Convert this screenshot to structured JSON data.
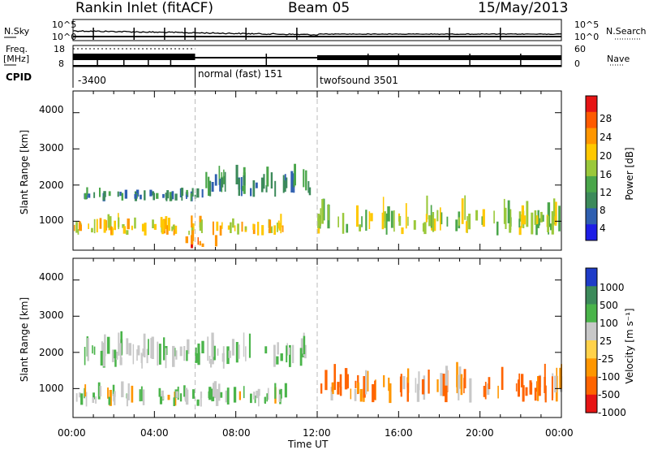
{
  "header": {
    "site": "Rankin Inlet (fitACF)",
    "beam": "Beam 05",
    "date": "15/May/2013"
  },
  "top_panels": {
    "nsky_label": "N.Sky",
    "nsky_ticks": [
      "10^5",
      "10^0"
    ],
    "nsearch_label": "N.Search",
    "nsearch_ticks": [
      "10^5",
      "10^0"
    ],
    "freq_label": "Freq.",
    "freq_unit": "[MHz]",
    "freq_ticks": [
      "18",
      "8"
    ],
    "nave_label": "Nave",
    "nave_ticks": [
      "60",
      "0"
    ],
    "cpid_label": "CPID",
    "cpid_segments": [
      {
        "start": 0,
        "end": 6,
        "label": "-3400"
      },
      {
        "start": 6,
        "end": 12,
        "label": "normal (fast) 151"
      },
      {
        "start": 12,
        "end": 24,
        "label": "twofsound 3501"
      }
    ]
  },
  "x_axis": {
    "title": "Time UT",
    "range": [
      0,
      24
    ],
    "ticks": [
      "00:00",
      "04:00",
      "08:00",
      "12:00",
      "16:00",
      "20:00",
      "00:00"
    ]
  },
  "y_axis": {
    "title": "Slant Range [km]",
    "range": [
      200,
      4600
    ],
    "ticks": [
      "1000",
      "2000",
      "3000",
      "4000"
    ]
  },
  "power_scale": {
    "title": "Power [dB]",
    "labels": [
      "4",
      "8",
      "12",
      "16",
      "20",
      "24",
      "28"
    ],
    "colors": [
      "#1e1ee6",
      "#2f5fb0",
      "#3c8a5a",
      "#4aa64a",
      "#9ac83a",
      "#ffc800",
      "#ff9600",
      "#ff5a00",
      "#e61414"
    ]
  },
  "velocity_scale": {
    "title": "Velocity [m s⁻¹]",
    "labels": [
      "1000",
      "500",
      "100",
      "25",
      "-25",
      "-100",
      "-500",
      "-1000"
    ],
    "colors": [
      "#1e3cc8",
      "#3c8a5a",
      "#4ab44a",
      "#c8c8c8",
      "#ffd24a",
      "#ff9600",
      "#ff6400",
      "#e61414"
    ]
  },
  "chart_data": [
    {
      "type": "heatmap",
      "title": "Power",
      "xlabel": "Time UT",
      "ylabel": "Slant Range [km]",
      "xlim": [
        0,
        24
      ],
      "ylim": [
        200,
        4600
      ],
      "colorbar": "Power [dB]",
      "echo_bands": [
        {
          "t_start": 0.5,
          "t_end": 6.2,
          "range_km": [
            1550,
            1900
          ],
          "value_db": 8
        },
        {
          "t_start": 0.0,
          "t_end": 10.5,
          "range_km": [
            600,
            1100
          ],
          "value_db": 20
        },
        {
          "t_start": 5.5,
          "t_end": 7.0,
          "range_km": [
            250,
            700
          ],
          "value_db": 28
        },
        {
          "t_start": 6.3,
          "t_end": 11.8,
          "range_km": [
            1650,
            2400
          ],
          "value_db": 8
        },
        {
          "t_start": 12.0,
          "t_end": 24.0,
          "range_km": [
            600,
            1500
          ],
          "value_db": 16
        }
      ]
    },
    {
      "type": "heatmap",
      "title": "Velocity",
      "xlabel": "Time UT",
      "ylabel": "Slant Range [km]",
      "xlim": [
        0,
        24
      ],
      "ylim": [
        200,
        4600
      ],
      "colorbar": "Velocity [m s⁻¹]",
      "echo_bands": [
        {
          "t_start": 0.5,
          "t_end": 11.8,
          "range_km": [
            1550,
            2400
          ],
          "value_ms": 0
        },
        {
          "t_start": 0.0,
          "t_end": 10.5,
          "range_km": [
            500,
            1100
          ],
          "value_ms": 100
        },
        {
          "t_start": 12.0,
          "t_end": 24.0,
          "range_km": [
            600,
            1500
          ],
          "value_ms": -100
        }
      ]
    }
  ]
}
